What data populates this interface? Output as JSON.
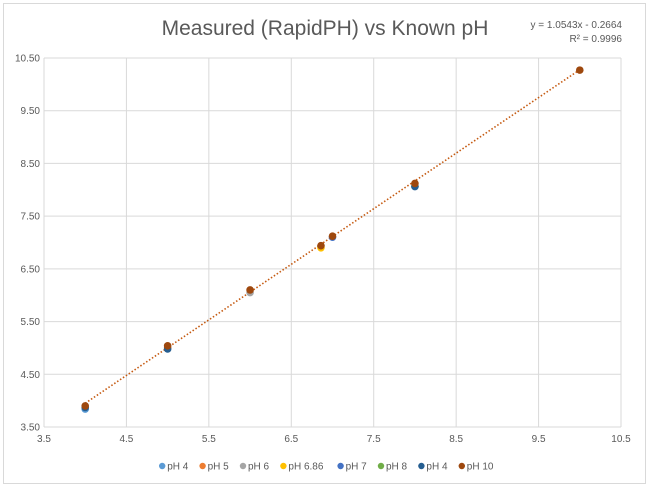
{
  "chart_data": {
    "type": "scatter",
    "title": "Measured (RapidPH) vs Known pH",
    "xlabel": "",
    "ylabel": "",
    "xlim": [
      3.5,
      10.5
    ],
    "ylim": [
      3.5,
      10.5
    ],
    "x_ticks": [
      "3.5",
      "4.5",
      "5.5",
      "6.5",
      "7.5",
      "8.5",
      "9.5",
      "10.5"
    ],
    "y_ticks": [
      "3.50",
      "4.50",
      "5.50",
      "6.50",
      "7.50",
      "8.50",
      "9.50",
      "10.50"
    ],
    "grid": true,
    "legend_position": "bottom",
    "series": [
      {
        "name": "pH 4",
        "color": "#5b9bd5",
        "x": [
          4
        ],
        "y": [
          3.84
        ]
      },
      {
        "name": "pH 5",
        "color": "#ed7d31",
        "x": [
          5
        ],
        "y": [
          5.0
        ]
      },
      {
        "name": "pH 6",
        "color": "#a5a5a5",
        "x": [
          6
        ],
        "y": [
          6.05
        ]
      },
      {
        "name": "pH 6.86",
        "color": "#ffc000",
        "x": [
          6.86
        ],
        "y": [
          6.9
        ]
      },
      {
        "name": "pH 7",
        "color": "#4472c4",
        "x": [
          7
        ],
        "y": [
          7.1
        ]
      },
      {
        "name": "pH 8",
        "color": "#70ad47",
        "x": [
          8
        ],
        "y": [
          8.07
        ]
      },
      {
        "name": "pH 4",
        "color": "#255e91",
        "x": [
          4,
          5,
          8
        ],
        "y": [
          3.87,
          4.98,
          8.06
        ]
      },
      {
        "name": "pH 10",
        "color": "#9e480e",
        "x": [
          4,
          5,
          6,
          6.86,
          7,
          8,
          10
        ],
        "y": [
          3.9,
          5.04,
          6.1,
          6.94,
          7.12,
          8.12,
          10.27
        ]
      }
    ],
    "trendline": {
      "type": "linear",
      "slope": 1.0543,
      "intercept": -0.2664,
      "x_range": [
        4,
        10
      ],
      "color": "#c55a11",
      "equation": "y = 1.0543x - 0.2664",
      "r_squared": "R² = 0.9996"
    }
  }
}
